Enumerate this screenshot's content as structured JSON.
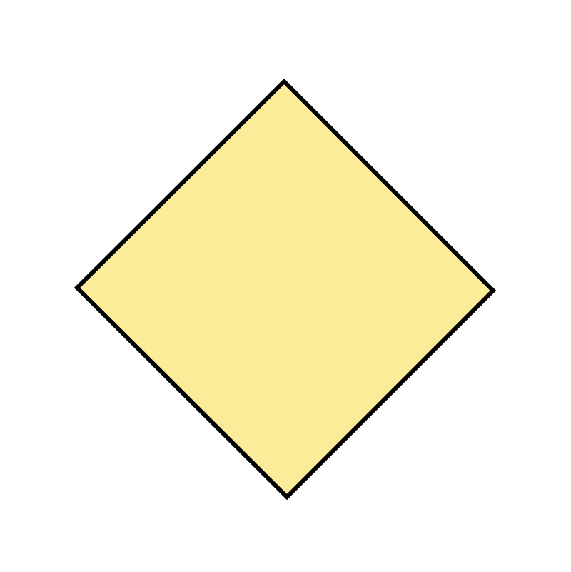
{
  "diagram": {
    "shapes": [
      {
        "type": "diamond",
        "fill": "#FAEC99",
        "stroke": "#000000"
      }
    ]
  }
}
